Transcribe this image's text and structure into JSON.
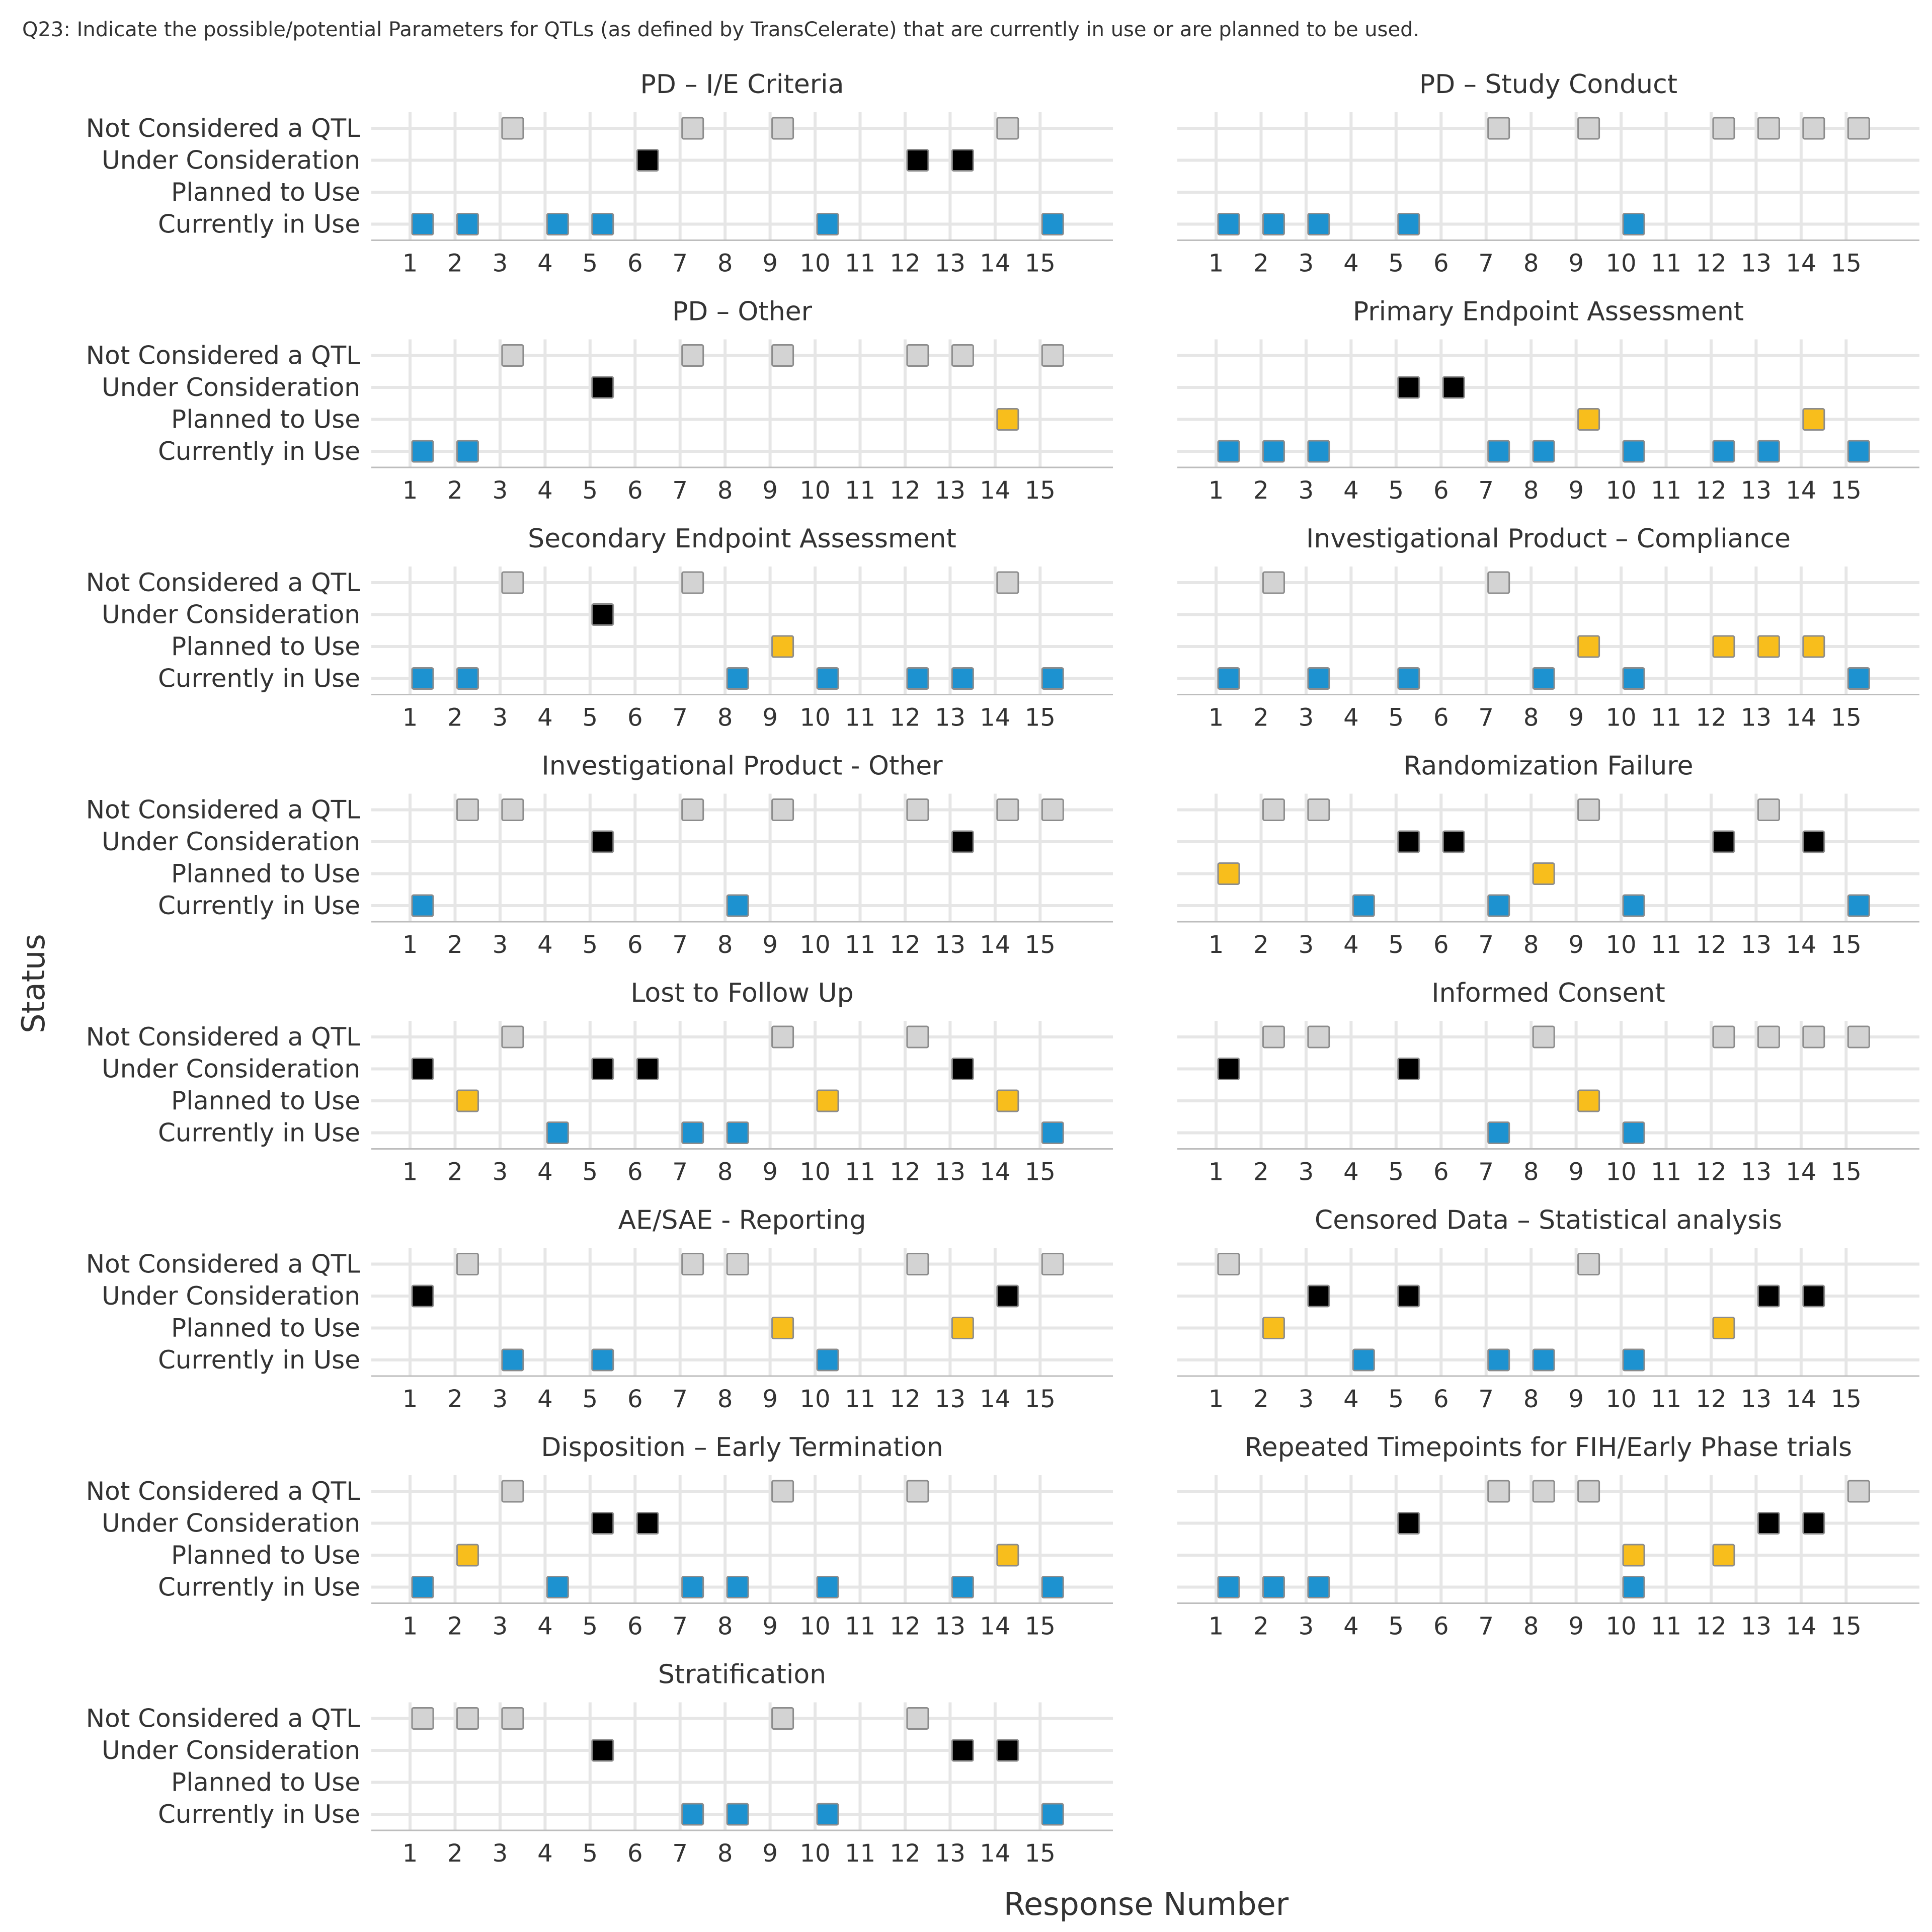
{
  "chart_data": {
    "type": "scatter",
    "subtitle": "Q23: Indicate the possible/potential Parameters for QTLs (as defined by TransCelerate) that are currently in use or are planned to be used.",
    "xlabel": "Response Number",
    "ylabel": "Status",
    "categories": [
      "Currently in Use",
      "Planned to Use",
      "Under Consideration",
      "Not Considered a QTL"
    ],
    "x_ticks": [
      1,
      2,
      3,
      4,
      5,
      6,
      7,
      8,
      9,
      10,
      11,
      12,
      13,
      14,
      15
    ],
    "xlim": [
      1,
      16
    ],
    "grid": true,
    "legend": "none",
    "colors": {
      "Not Considered a QTL": "#d3d3d3",
      "Under Consideration": "#000000",
      "Planned to Use": "#f8be1c",
      "Currently in Use": "#1d92d0"
    },
    "panels": [
      {
        "title": "PD – I/E Criteria",
        "series": [
          {
            "name": "Not Considered a QTL",
            "x": [
              3,
              7,
              9,
              14
            ]
          },
          {
            "name": "Under Consideration",
            "x": [
              6,
              12,
              13
            ]
          },
          {
            "name": "Planned to Use",
            "x": []
          },
          {
            "name": "Currently in Use",
            "x": [
              1,
              2,
              4,
              5,
              10,
              15
            ]
          }
        ]
      },
      {
        "title": "PD – Study Conduct",
        "series": [
          {
            "name": "Not Considered a QTL",
            "x": [
              7,
              9,
              12,
              13,
              14,
              15
            ]
          },
          {
            "name": "Under Consideration",
            "x": []
          },
          {
            "name": "Planned to Use",
            "x": []
          },
          {
            "name": "Currently in Use",
            "x": [
              1,
              2,
              3,
              5,
              10
            ]
          }
        ]
      },
      {
        "title": "PD – Other",
        "series": [
          {
            "name": "Not Considered a QTL",
            "x": [
              3,
              7,
              9,
              12,
              13,
              15
            ]
          },
          {
            "name": "Under Consideration",
            "x": [
              5
            ]
          },
          {
            "name": "Planned to Use",
            "x": [
              14
            ]
          },
          {
            "name": "Currently in Use",
            "x": [
              1,
              2
            ]
          }
        ]
      },
      {
        "title": "Primary Endpoint Assessment",
        "series": [
          {
            "name": "Not Considered a QTL",
            "x": []
          },
          {
            "name": "Under Consideration",
            "x": [
              5,
              6
            ]
          },
          {
            "name": "Planned to Use",
            "x": [
              9,
              14
            ]
          },
          {
            "name": "Currently in Use",
            "x": [
              1,
              2,
              3,
              7,
              8,
              10,
              12,
              13,
              15
            ]
          }
        ]
      },
      {
        "title": "Secondary Endpoint Assessment",
        "series": [
          {
            "name": "Not Considered a QTL",
            "x": [
              3,
              7,
              14
            ]
          },
          {
            "name": "Under Consideration",
            "x": [
              5
            ]
          },
          {
            "name": "Planned to Use",
            "x": [
              9
            ]
          },
          {
            "name": "Currently in Use",
            "x": [
              1,
              2,
              8,
              10,
              12,
              13,
              15
            ]
          }
        ]
      },
      {
        "title": "Investigational Product – Compliance",
        "series": [
          {
            "name": "Not Considered a QTL",
            "x": [
              2,
              7
            ]
          },
          {
            "name": "Under Consideration",
            "x": []
          },
          {
            "name": "Planned to Use",
            "x": [
              9,
              12,
              13,
              14
            ]
          },
          {
            "name": "Currently in Use",
            "x": [
              1,
              3,
              5,
              8,
              10,
              15
            ]
          }
        ]
      },
      {
        "title": "Investigational Product - Other",
        "series": [
          {
            "name": "Not Considered a QTL",
            "x": [
              2,
              3,
              7,
              9,
              12,
              14,
              15
            ]
          },
          {
            "name": "Under Consideration",
            "x": [
              5,
              13
            ]
          },
          {
            "name": "Planned to Use",
            "x": []
          },
          {
            "name": "Currently in Use",
            "x": [
              1,
              8
            ]
          }
        ]
      },
      {
        "title": "Randomization Failure",
        "series": [
          {
            "name": "Not Considered a QTL",
            "x": [
              2,
              3,
              9,
              13
            ]
          },
          {
            "name": "Under Consideration",
            "x": [
              5,
              6,
              12,
              14
            ]
          },
          {
            "name": "Planned to Use",
            "x": [
              1,
              8
            ]
          },
          {
            "name": "Currently in Use",
            "x": [
              4,
              7,
              10,
              15
            ]
          }
        ]
      },
      {
        "title": "Lost to Follow Up",
        "series": [
          {
            "name": "Not Considered a QTL",
            "x": [
              3,
              9,
              12
            ]
          },
          {
            "name": "Under Consideration",
            "x": [
              1,
              5,
              6,
              13
            ]
          },
          {
            "name": "Planned to Use",
            "x": [
              2,
              10,
              14
            ]
          },
          {
            "name": "Currently in Use",
            "x": [
              4,
              7,
              8,
              15
            ]
          }
        ]
      },
      {
        "title": "Informed Consent",
        "series": [
          {
            "name": "Not Considered a QTL",
            "x": [
              2,
              3,
              8,
              12,
              13,
              14,
              15
            ]
          },
          {
            "name": "Under Consideration",
            "x": [
              1,
              5
            ]
          },
          {
            "name": "Planned to Use",
            "x": [
              9
            ]
          },
          {
            "name": "Currently in Use",
            "x": [
              7,
              10
            ]
          }
        ]
      },
      {
        "title": "AE/SAE - Reporting",
        "series": [
          {
            "name": "Not Considered a QTL",
            "x": [
              2,
              7,
              8,
              12,
              15
            ]
          },
          {
            "name": "Under Consideration",
            "x": [
              1,
              14
            ]
          },
          {
            "name": "Planned to Use",
            "x": [
              9,
              13
            ]
          },
          {
            "name": "Currently in Use",
            "x": [
              3,
              5,
              10
            ]
          }
        ]
      },
      {
        "title": "Censored Data – Statistical analysis",
        "series": [
          {
            "name": "Not Considered a QTL",
            "x": [
              1,
              9
            ]
          },
          {
            "name": "Under Consideration",
            "x": [
              3,
              5,
              13,
              14
            ]
          },
          {
            "name": "Planned to Use",
            "x": [
              2,
              12
            ]
          },
          {
            "name": "Currently in Use",
            "x": [
              4,
              7,
              8,
              10
            ]
          }
        ]
      },
      {
        "title": "Disposition – Early Termination",
        "series": [
          {
            "name": "Not Considered a QTL",
            "x": [
              3,
              9,
              12
            ]
          },
          {
            "name": "Under Consideration",
            "x": [
              5,
              6
            ]
          },
          {
            "name": "Planned to Use",
            "x": [
              2,
              14
            ]
          },
          {
            "name": "Currently in Use",
            "x": [
              1,
              4,
              7,
              8,
              10,
              13,
              15
            ]
          }
        ]
      },
      {
        "title": "Repeated Timepoints for FIH/Early Phase trials",
        "series": [
          {
            "name": "Not Considered a QTL",
            "x": [
              7,
              8,
              9,
              15
            ]
          },
          {
            "name": "Under Consideration",
            "x": [
              5,
              13,
              14
            ]
          },
          {
            "name": "Planned to Use",
            "x": [
              10,
              12
            ]
          },
          {
            "name": "Currently in Use",
            "x": [
              1,
              2,
              3,
              10
            ]
          }
        ]
      },
      {
        "title": "Stratification",
        "series": [
          {
            "name": "Not Considered a QTL",
            "x": [
              1,
              2,
              3,
              9,
              12
            ]
          },
          {
            "name": "Under Consideration",
            "x": [
              5,
              13,
              14
            ]
          },
          {
            "name": "Planned to Use",
            "x": []
          },
          {
            "name": "Currently in Use",
            "x": [
              7,
              8,
              10,
              15
            ]
          }
        ]
      }
    ]
  }
}
